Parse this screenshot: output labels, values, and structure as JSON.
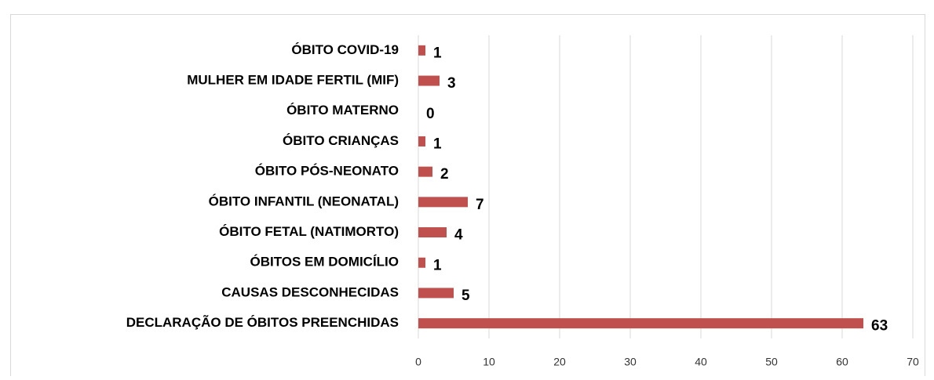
{
  "chart_data": {
    "type": "bar",
    "orientation": "horizontal",
    "categories": [
      "ÓBITO COVID-19",
      "MULHER EM IDADE FERTIL (MIF)",
      "ÓBITO MATERNO",
      "ÓBITO CRIANÇAS",
      "ÓBITO PÓS-NEONATO",
      "ÓBITO INFANTIL (NEONATAL)",
      "ÓBITO FETAL (NATIMORTO)",
      "ÓBITOS EM DOMICÍLIO",
      "CAUSAS DESCONHECIDAS",
      "DECLARAÇÃO DE ÓBITOS PREENCHIDAS"
    ],
    "values": [
      1,
      3,
      0,
      1,
      2,
      7,
      4,
      1,
      5,
      63
    ],
    "color": "#c0504d",
    "xlim": [
      0,
      70
    ],
    "xticks": [
      0,
      10,
      20,
      30,
      40,
      50,
      60,
      70
    ],
    "grid": true
  }
}
